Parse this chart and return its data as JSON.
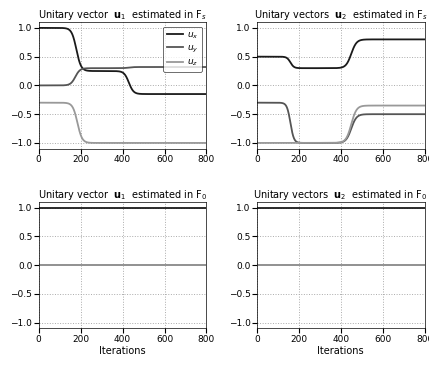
{
  "xlim": [
    0,
    800
  ],
  "ylim": [
    -1.1,
    1.1
  ],
  "yticks": [
    -1,
    -0.5,
    0,
    0.5,
    1
  ],
  "xticks": [
    0,
    200,
    400,
    600,
    800
  ],
  "colors": {
    "dark": "#1a1a1a",
    "mid": "#555555",
    "light": "#999999"
  },
  "titles": {
    "tl": "Unitary vector  $\\mathbf{u}_1$  estimated in F$_s$",
    "tr": "Unitary vectors  $\\mathbf{u}_2$  estimated in F$_s$",
    "bl": "Unitary vector  $\\mathbf{u}_1$  estimated in F$_0$",
    "br": "Unitary vectors  $\\mathbf{u}_2$  estimated in F$_0$"
  },
  "xlabel": "Iterations",
  "n_points": 1000
}
